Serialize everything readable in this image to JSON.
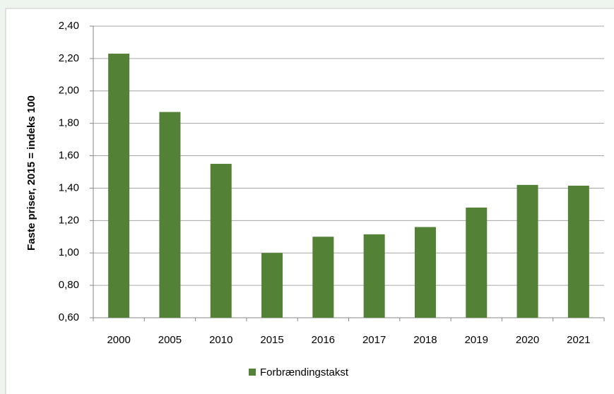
{
  "chart_data": {
    "type": "bar",
    "y_label": "Faste priser, 2015 = indeks 100",
    "categories": [
      "2000",
      "2005",
      "2010",
      "2015",
      "2016",
      "2017",
      "2018",
      "2019",
      "2020",
      "2021"
    ],
    "series": [
      {
        "name": "Forbrændingstakst",
        "color": "#538135",
        "values": [
          2.23,
          1.87,
          1.55,
          1.0,
          1.1,
          1.115,
          1.16,
          1.28,
          1.42,
          1.415
        ]
      }
    ],
    "ylim": [
      0.6,
      2.4
    ],
    "yticks": [
      {
        "value": 0.6,
        "label": "0,60"
      },
      {
        "value": 0.8,
        "label": "0,80"
      },
      {
        "value": 1.0,
        "label": "1,00"
      },
      {
        "value": 1.2,
        "label": "1,20"
      },
      {
        "value": 1.4,
        "label": "1,40"
      },
      {
        "value": 1.6,
        "label": "1,60"
      },
      {
        "value": 1.8,
        "label": "1,80"
      },
      {
        "value": 2.0,
        "label": "2,00"
      },
      {
        "value": 2.2,
        "label": "2,20"
      },
      {
        "value": 2.4,
        "label": "2,40"
      }
    ],
    "grid": true,
    "legend": "bottom"
  }
}
